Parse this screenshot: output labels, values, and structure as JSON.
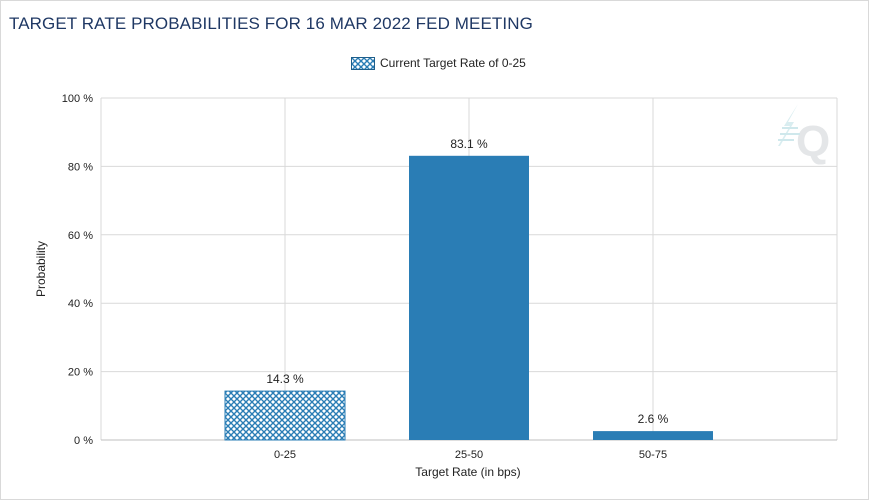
{
  "chart_data": {
    "type": "bar",
    "title": "TARGET RATE PROBABILITIES FOR 16 MAR 2022 FED MEETING",
    "legend": {
      "label": "Current Target Rate of 0-25",
      "placement": "top-center"
    },
    "categories": [
      "0-25",
      "25-50",
      "50-75"
    ],
    "values": [
      14.3,
      83.1,
      2.6
    ],
    "data_labels": [
      "14.3 %",
      "83.1 %",
      "2.6 %"
    ],
    "highlighted_category": "0-25",
    "xlabel": "Target Rate (in bps)",
    "ylabel": "Probability",
    "ylim": [
      0,
      100
    ],
    "yticks": [
      0,
      20,
      40,
      60,
      80,
      100
    ],
    "ytick_labels": [
      "0 %",
      "20 %",
      "40 %",
      "60 %",
      "80 %",
      "100 %"
    ],
    "grid": true,
    "colors": {
      "bar": "#2a7db5",
      "highlight_pattern": "#2a7db5",
      "grid": "#d9d9d9",
      "title": "#1f3864"
    }
  }
}
